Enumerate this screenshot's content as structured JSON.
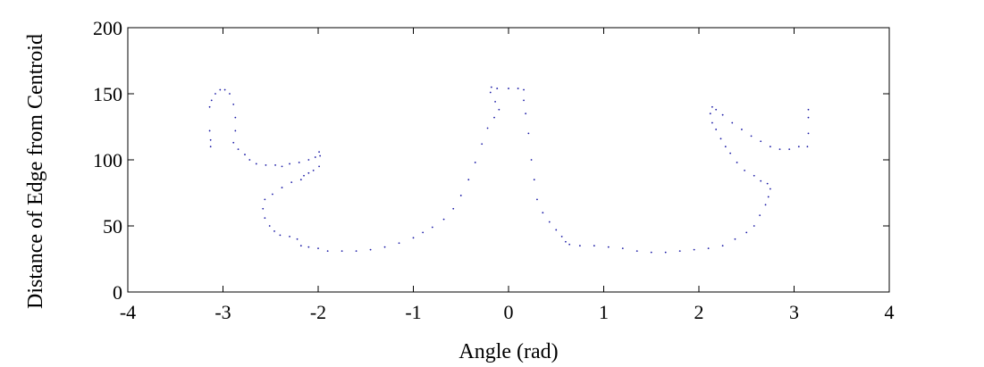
{
  "chart_data": {
    "type": "scatter",
    "title": "",
    "xlabel": "Angle (rad)",
    "ylabel": "Distance of Edge from Centroid",
    "xlim": [
      -4,
      4
    ],
    "ylim": [
      0,
      200
    ],
    "xticks": [
      "-4",
      "-3",
      "-2",
      "-1",
      "0",
      "1",
      "2",
      "3",
      "4"
    ],
    "yticks": [
      "0",
      "50",
      "100",
      "150",
      "200"
    ],
    "grid": false,
    "marker_color": "#1a1aa6",
    "series": [
      {
        "points": [
          [
            -3.14,
            140
          ],
          [
            -3.12,
            145
          ],
          [
            -3.08,
            150
          ],
          [
            -3.03,
            153
          ],
          [
            -2.98,
            153
          ],
          [
            -2.93,
            150
          ],
          [
            -2.89,
            142
          ],
          [
            -2.87,
            132
          ],
          [
            -2.87,
            122
          ],
          [
            -2.89,
            113
          ],
          [
            -2.84,
            108
          ],
          [
            -2.77,
            104
          ],
          [
            -2.72,
            100
          ],
          [
            -2.65,
            97
          ],
          [
            -2.55,
            96
          ],
          [
            -2.45,
            96
          ],
          [
            -2.38,
            95
          ],
          [
            -2.3,
            97
          ],
          [
            -2.2,
            98
          ],
          [
            -2.1,
            100
          ],
          [
            -2.03,
            102
          ],
          [
            -1.99,
            106
          ],
          [
            -1.98,
            103
          ],
          [
            -1.99,
            95
          ],
          [
            -2.05,
            92
          ],
          [
            -2.1,
            90
          ],
          [
            -2.15,
            88
          ],
          [
            -2.18,
            85
          ],
          [
            -2.28,
            83
          ],
          [
            -2.38,
            79
          ],
          [
            -2.48,
            74
          ],
          [
            -2.56,
            70
          ],
          [
            -2.58,
            63
          ],
          [
            -2.56,
            56
          ],
          [
            -2.51,
            50
          ],
          [
            -2.46,
            46
          ],
          [
            -2.4,
            43
          ],
          [
            -2.3,
            42
          ],
          [
            -2.22,
            40
          ],
          [
            -2.18,
            35
          ],
          [
            -2.1,
            34
          ],
          [
            -2.0,
            33
          ],
          [
            -1.9,
            31
          ],
          [
            -1.75,
            31
          ],
          [
            -1.6,
            31
          ],
          [
            -1.45,
            32
          ],
          [
            -1.3,
            34
          ],
          [
            -1.15,
            37
          ],
          [
            -1.0,
            41
          ],
          [
            -0.9,
            45
          ],
          [
            -0.8,
            49
          ],
          [
            -0.68,
            55
          ],
          [
            -0.58,
            63
          ],
          [
            -0.5,
            73
          ],
          [
            -0.42,
            85
          ],
          [
            -0.35,
            98
          ],
          [
            -0.28,
            112
          ],
          [
            -0.22,
            124
          ],
          [
            -0.15,
            132
          ],
          [
            -0.1,
            138
          ],
          [
            -0.14,
            144
          ],
          [
            -0.19,
            151
          ],
          [
            -0.18,
            155
          ],
          [
            -0.12,
            154
          ],
          [
            0.0,
            154
          ],
          [
            0.1,
            154
          ],
          [
            0.16,
            153
          ],
          [
            0.16,
            145
          ],
          [
            0.18,
            135
          ],
          [
            0.21,
            120
          ],
          [
            0.24,
            100
          ],
          [
            0.27,
            85
          ],
          [
            0.3,
            70
          ],
          [
            0.36,
            60
          ],
          [
            0.43,
            53
          ],
          [
            0.5,
            47
          ],
          [
            0.56,
            42
          ],
          [
            0.6,
            38
          ],
          [
            0.64,
            36
          ],
          [
            0.75,
            35
          ],
          [
            0.9,
            35
          ],
          [
            1.05,
            34
          ],
          [
            1.2,
            33
          ],
          [
            1.35,
            31
          ],
          [
            1.5,
            30
          ],
          [
            1.65,
            30
          ],
          [
            1.8,
            31
          ],
          [
            1.95,
            32
          ],
          [
            2.1,
            33
          ],
          [
            2.25,
            35
          ],
          [
            2.38,
            40
          ],
          [
            2.5,
            45
          ],
          [
            2.58,
            50
          ],
          [
            2.64,
            58
          ],
          [
            2.7,
            66
          ],
          [
            2.73,
            72
          ],
          [
            2.75,
            78
          ],
          [
            2.72,
            82
          ],
          [
            2.65,
            84
          ],
          [
            2.58,
            88
          ],
          [
            2.48,
            92
          ],
          [
            2.4,
            98
          ],
          [
            2.33,
            105
          ],
          [
            2.28,
            110
          ],
          [
            2.23,
            116
          ],
          [
            2.18,
            123
          ],
          [
            2.14,
            128
          ],
          [
            2.12,
            135
          ],
          [
            2.14,
            140
          ],
          [
            2.18,
            138
          ],
          [
            2.25,
            134
          ],
          [
            2.35,
            128
          ],
          [
            2.45,
            123
          ],
          [
            2.55,
            118
          ],
          [
            2.65,
            114
          ],
          [
            2.75,
            110
          ],
          [
            2.85,
            108
          ],
          [
            2.95,
            108
          ],
          [
            3.05,
            110
          ],
          [
            3.14,
            110
          ],
          [
            3.15,
            120
          ],
          [
            3.15,
            132
          ],
          [
            3.15,
            138
          ],
          [
            -3.13,
            115
          ],
          [
            -3.13,
            110
          ],
          [
            -3.14,
            122
          ]
        ]
      }
    ]
  }
}
